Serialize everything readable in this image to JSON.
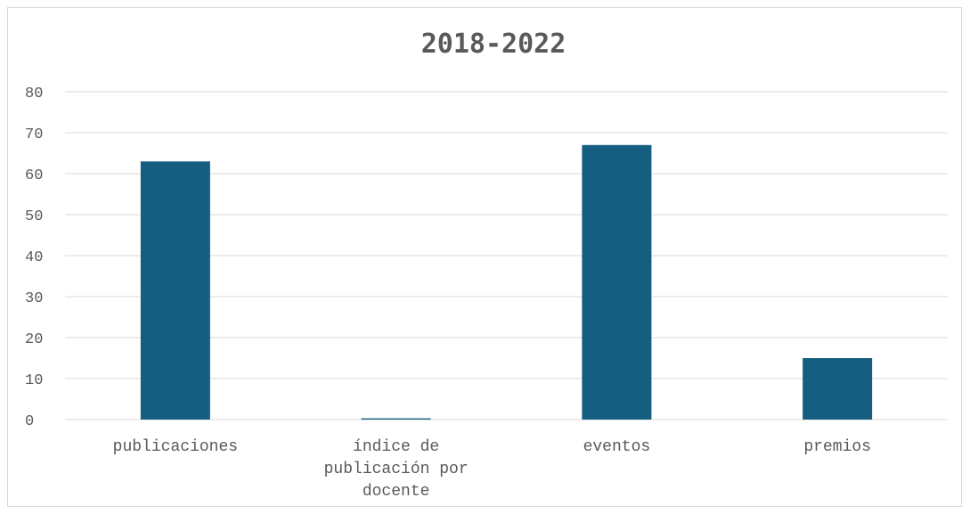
{
  "chart_data": {
    "type": "bar",
    "title": "2018-2022",
    "categories": [
      [
        "publicaciones"
      ],
      [
        "índice de",
        "publicación por",
        "docente"
      ],
      [
        "eventos"
      ],
      [
        "premios"
      ]
    ],
    "values": [
      63,
      0.3,
      67,
      15
    ],
    "ylim": [
      0,
      80
    ],
    "y_ticks": [
      "0",
      "10",
      "20",
      "30",
      "40",
      "50",
      "60",
      "70",
      "80"
    ],
    "grid": true,
    "legend": "none",
    "bar_color": "#165e80"
  }
}
